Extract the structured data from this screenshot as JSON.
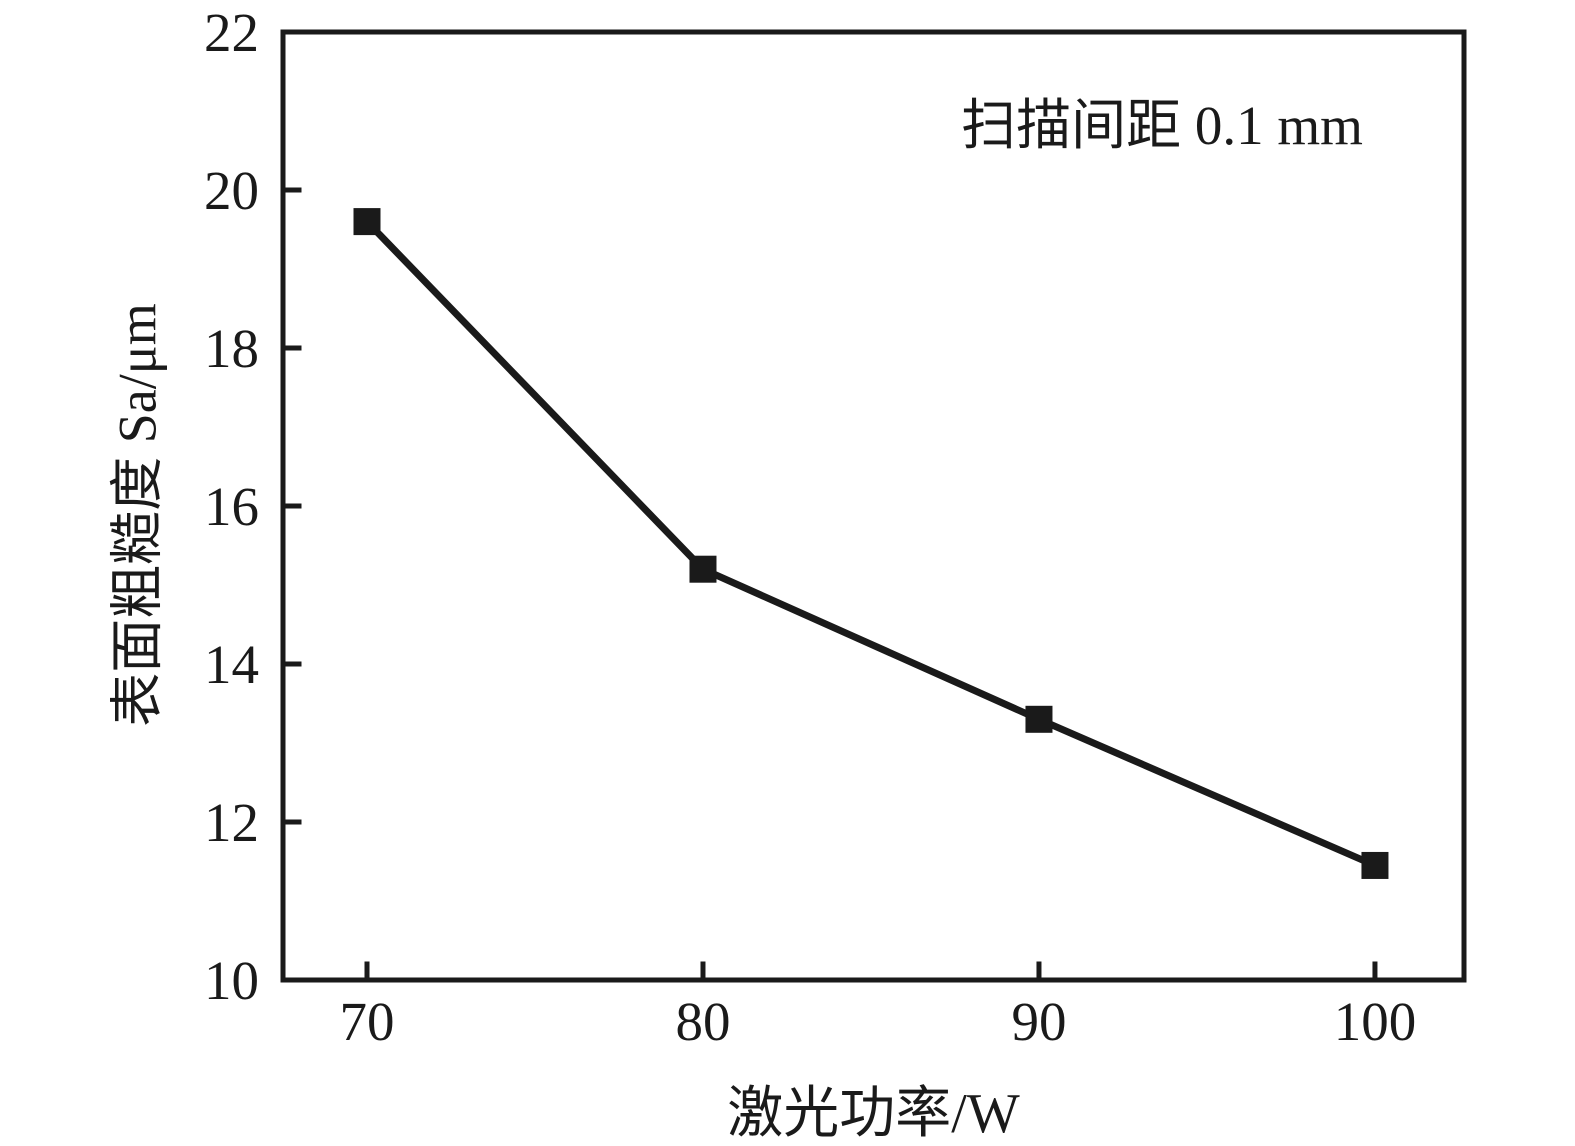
{
  "chart_data": {
    "type": "line",
    "x": [
      70,
      80,
      90,
      100
    ],
    "values": [
      19.6,
      15.2,
      13.3,
      11.45
    ],
    "title": "",
    "xlabel": "激光功率/W",
    "ylabel": "表面粗糙度 Sa/μm",
    "annotation": "扫描间距 0.1 mm",
    "xticks": [
      70,
      80,
      90,
      100
    ],
    "xtick_labels": [
      "70",
      "80",
      "90",
      "100"
    ],
    "yticks": [
      10,
      12,
      14,
      16,
      18,
      20,
      22
    ],
    "ytick_labels": [
      "10",
      "12",
      "14",
      "16",
      "18",
      "20",
      "22"
    ],
    "xlim": [
      67.5,
      102.65
    ],
    "ylim": [
      10,
      22
    ],
    "marker": "square",
    "grid": false,
    "legend": "none",
    "line_color": "#1a1a1a",
    "axis_color": "#1a1a1a",
    "background_color": "#ffffff"
  }
}
